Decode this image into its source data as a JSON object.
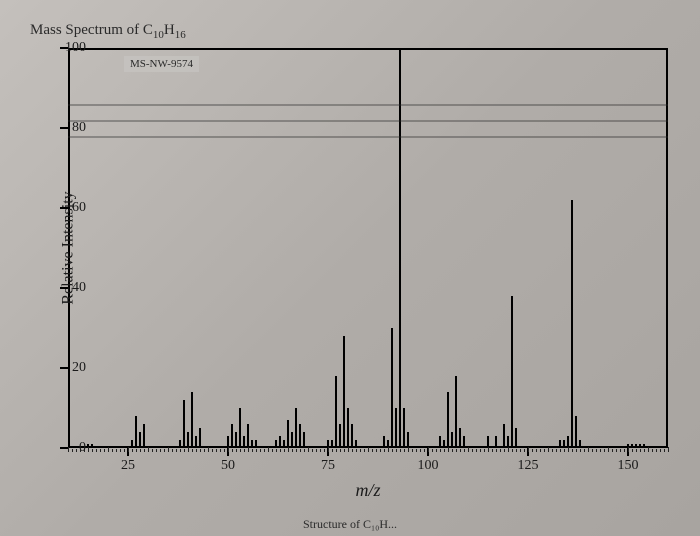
{
  "title_html": "Mass Spectrum of C<sub>10</sub>H<sub>16</sub>",
  "spectrum_id": "MS-NW-9574",
  "chart": {
    "type": "mass-spectrum",
    "xlabel": "m/z",
    "ylabel": "Relative Intensity",
    "xlim": [
      10,
      160
    ],
    "ylim": [
      0,
      100
    ],
    "x_ticks": [
      25,
      50,
      75,
      100,
      125,
      150
    ],
    "y_ticks": [
      0,
      20,
      40,
      60,
      80,
      100
    ],
    "x_minor_step": 5,
    "background_color": "#b8b4b0",
    "axis_color": "#000000",
    "peak_color": "#000000",
    "label_fontsize": 14,
    "title_fontsize": 15,
    "peaks": [
      {
        "mz": 15,
        "ri": 1
      },
      {
        "mz": 16,
        "ri": 1
      },
      {
        "mz": 26,
        "ri": 2
      },
      {
        "mz": 27,
        "ri": 8
      },
      {
        "mz": 28,
        "ri": 4
      },
      {
        "mz": 29,
        "ri": 6
      },
      {
        "mz": 38,
        "ri": 2
      },
      {
        "mz": 39,
        "ri": 12
      },
      {
        "mz": 40,
        "ri": 4
      },
      {
        "mz": 41,
        "ri": 14
      },
      {
        "mz": 42,
        "ri": 3
      },
      {
        "mz": 43,
        "ri": 5
      },
      {
        "mz": 50,
        "ri": 3
      },
      {
        "mz": 51,
        "ri": 6
      },
      {
        "mz": 52,
        "ri": 4
      },
      {
        "mz": 53,
        "ri": 10
      },
      {
        "mz": 54,
        "ri": 3
      },
      {
        "mz": 55,
        "ri": 6
      },
      {
        "mz": 56,
        "ri": 2
      },
      {
        "mz": 57,
        "ri": 2
      },
      {
        "mz": 62,
        "ri": 2
      },
      {
        "mz": 63,
        "ri": 3
      },
      {
        "mz": 64,
        "ri": 2
      },
      {
        "mz": 65,
        "ri": 7
      },
      {
        "mz": 66,
        "ri": 4
      },
      {
        "mz": 67,
        "ri": 10
      },
      {
        "mz": 68,
        "ri": 6
      },
      {
        "mz": 69,
        "ri": 4
      },
      {
        "mz": 75,
        "ri": 2
      },
      {
        "mz": 76,
        "ri": 2
      },
      {
        "mz": 77,
        "ri": 18
      },
      {
        "mz": 78,
        "ri": 6
      },
      {
        "mz": 79,
        "ri": 28
      },
      {
        "mz": 80,
        "ri": 10
      },
      {
        "mz": 81,
        "ri": 6
      },
      {
        "mz": 82,
        "ri": 2
      },
      {
        "mz": 89,
        "ri": 3
      },
      {
        "mz": 90,
        "ri": 2
      },
      {
        "mz": 91,
        "ri": 30
      },
      {
        "mz": 92,
        "ri": 10
      },
      {
        "mz": 93,
        "ri": 100
      },
      {
        "mz": 94,
        "ri": 10
      },
      {
        "mz": 95,
        "ri": 4
      },
      {
        "mz": 103,
        "ri": 3
      },
      {
        "mz": 104,
        "ri": 2
      },
      {
        "mz": 105,
        "ri": 14
      },
      {
        "mz": 106,
        "ri": 4
      },
      {
        "mz": 107,
        "ri": 18
      },
      {
        "mz": 108,
        "ri": 5
      },
      {
        "mz": 109,
        "ri": 3
      },
      {
        "mz": 115,
        "ri": 3
      },
      {
        "mz": 117,
        "ri": 3
      },
      {
        "mz": 119,
        "ri": 6
      },
      {
        "mz": 120,
        "ri": 3
      },
      {
        "mz": 121,
        "ri": 38
      },
      {
        "mz": 122,
        "ri": 5
      },
      {
        "mz": 133,
        "ri": 2
      },
      {
        "mz": 134,
        "ri": 2
      },
      {
        "mz": 135,
        "ri": 3
      },
      {
        "mz": 136,
        "ri": 62
      },
      {
        "mz": 137,
        "ri": 8
      },
      {
        "mz": 138,
        "ri": 2
      },
      {
        "mz": 150,
        "ri": 1
      },
      {
        "mz": 151,
        "ri": 1
      },
      {
        "mz": 152,
        "ri": 1
      },
      {
        "mz": 153,
        "ri": 1
      },
      {
        "mz": 154,
        "ri": 1
      }
    ]
  },
  "scan_artifact_lines_y": [
    78,
    82,
    86
  ],
  "footer_fragment": "Structure of C₁₀H..."
}
